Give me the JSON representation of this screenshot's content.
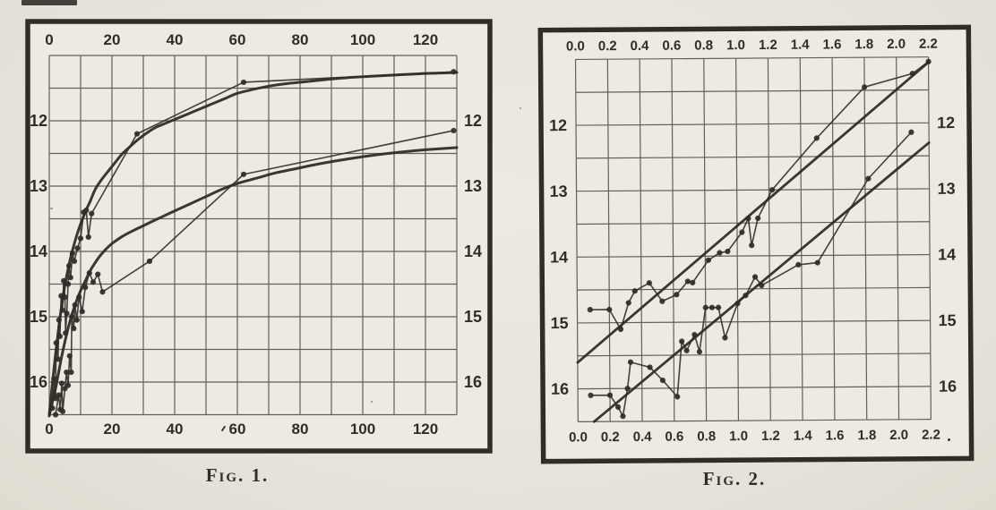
{
  "page": {
    "background": "#e7e4dc",
    "paper_fill": "#edeae3",
    "ink": "#2f2d28",
    "grid_color": "#4b4741"
  },
  "chart_data": [
    {
      "id": "fig1",
      "type": "line",
      "caption": "Fig. 1.",
      "x_axis": {
        "range": [
          0,
          130
        ],
        "grid_step": 10,
        "ticks": [
          0,
          20,
          40,
          60,
          80,
          100,
          120
        ],
        "tick_labels": [
          "0",
          "20",
          "40",
          "60",
          "80",
          "100",
          "120"
        ],
        "labels_top": true,
        "labels_bottom": true
      },
      "y_axis": {
        "range": [
          11,
          16.5
        ],
        "grid_step": 0.5,
        "ticks": [
          12,
          13,
          14,
          15,
          16
        ],
        "tick_labels": [
          "12",
          "13",
          "14",
          "15",
          "16"
        ],
        "inverted_magnitude_scale": true,
        "labels_left": true,
        "labels_right": true
      },
      "series": [
        {
          "name": "upper-smooth-curve",
          "style": "curve",
          "points": [
            [
              0,
              16.5
            ],
            [
              1,
              16.02
            ],
            [
              2,
              15.58
            ],
            [
              3,
              15.17
            ],
            [
              4,
              14.82
            ],
            [
              5,
              14.52
            ],
            [
              6,
              14.27
            ],
            [
              7,
              14.06
            ],
            [
              8,
              13.88
            ],
            [
              9,
              13.72
            ],
            [
              10,
              13.58
            ],
            [
              11,
              13.46
            ],
            [
              12,
              13.34
            ],
            [
              13,
              13.24
            ],
            [
              14,
              13.12
            ],
            [
              15,
              13.02
            ],
            [
              17,
              12.88
            ],
            [
              19,
              12.76
            ],
            [
              21,
              12.64
            ],
            [
              23,
              12.52
            ],
            [
              25,
              12.43
            ],
            [
              28,
              12.3
            ],
            [
              31,
              12.19
            ],
            [
              34,
              12.1
            ],
            [
              37,
              12.04
            ],
            [
              40,
              11.98
            ],
            [
              44,
              11.9
            ],
            [
              48,
              11.82
            ],
            [
              52,
              11.74
            ],
            [
              56,
              11.66
            ],
            [
              60,
              11.58
            ],
            [
              65,
              11.52
            ],
            [
              70,
              11.47
            ],
            [
              76,
              11.43
            ],
            [
              82,
              11.4
            ],
            [
              88,
              11.37
            ],
            [
              95,
              11.34
            ],
            [
              102,
              11.32
            ],
            [
              110,
              11.3
            ],
            [
              118,
              11.28
            ],
            [
              124,
              11.27
            ],
            [
              130,
              11.26
            ]
          ]
        },
        {
          "name": "lower-smooth-curve",
          "style": "curve",
          "points": [
            [
              0,
              16.52
            ],
            [
              1,
              16.3
            ],
            [
              2,
              16.1
            ],
            [
              3,
              15.85
            ],
            [
              4,
              15.6
            ],
            [
              5,
              15.38
            ],
            [
              6,
              15.18
            ],
            [
              7,
              15.0
            ],
            [
              8,
              14.85
            ],
            [
              9,
              14.72
            ],
            [
              10,
              14.6
            ],
            [
              11,
              14.5
            ],
            [
              12,
              14.4
            ],
            [
              13,
              14.3
            ],
            [
              14,
              14.22
            ],
            [
              16,
              14.08
            ],
            [
              18,
              13.97
            ],
            [
              20,
              13.88
            ],
            [
              23,
              13.78
            ],
            [
              26,
              13.7
            ],
            [
              29,
              13.63
            ],
            [
              32,
              13.56
            ],
            [
              36,
              13.47
            ],
            [
              40,
              13.38
            ],
            [
              45,
              13.27
            ],
            [
              50,
              13.16
            ],
            [
              55,
              13.05
            ],
            [
              60,
              12.96
            ],
            [
              66,
              12.88
            ],
            [
              72,
              12.8
            ],
            [
              78,
              12.74
            ],
            [
              85,
              12.67
            ],
            [
              92,
              12.61
            ],
            [
              100,
              12.55
            ],
            [
              108,
              12.5
            ],
            [
              116,
              12.46
            ],
            [
              124,
              12.43
            ],
            [
              130,
              12.41
            ]
          ]
        },
        {
          "name": "upper-observed-points",
          "style": "scatter-line",
          "points": [
            [
              1,
              16.4
            ],
            [
              1.5,
              15.95
            ],
            [
              2,
              16.25
            ],
            [
              2.2,
              15.4
            ],
            [
              2.8,
              15.65
            ],
            [
              3.1,
              15.05
            ],
            [
              3.4,
              15.3
            ],
            [
              3.8,
              14.68
            ],
            [
              4.2,
              14.9
            ],
            [
              4.6,
              14.45
            ],
            [
              5,
              14.7
            ],
            [
              5.2,
              15.25
            ],
            [
              5.6,
              14.95
            ],
            [
              6,
              14.5
            ],
            [
              6.3,
              14.22
            ],
            [
              6.8,
              14.4
            ],
            [
              7.4,
              14.03
            ],
            [
              8,
              14.15
            ],
            [
              9,
              13.95
            ],
            [
              10,
              13.8
            ],
            [
              11,
              13.4
            ],
            [
              11.8,
              13.37
            ],
            [
              12.5,
              13.78
            ],
            [
              13.5,
              13.42
            ],
            [
              28,
              12.2
            ],
            [
              62,
              11.41
            ],
            [
              129,
              11.25
            ]
          ]
        },
        {
          "name": "lower-observed-points",
          "style": "scatter-line",
          "points": [
            [
              2,
              16.5
            ],
            [
              3,
              16.2
            ],
            [
              3.5,
              16.42
            ],
            [
              4,
              16.02
            ],
            [
              4.3,
              16.45
            ],
            [
              5,
              16.1
            ],
            [
              5.5,
              15.85
            ],
            [
              6,
              16.05
            ],
            [
              6.5,
              15.6
            ],
            [
              7,
              15.85
            ],
            [
              7.2,
              15.0
            ],
            [
              7.8,
              15.18
            ],
            [
              8.2,
              14.82
            ],
            [
              8.8,
              15.05
            ],
            [
              9.5,
              14.7
            ],
            [
              10.5,
              14.92
            ],
            [
              11.5,
              14.55
            ],
            [
              12.8,
              14.33
            ],
            [
              14,
              14.47
            ],
            [
              15.5,
              14.35
            ],
            [
              17,
              14.62
            ],
            [
              32,
              14.15
            ],
            [
              62,
              12.82
            ],
            [
              129,
              12.15
            ]
          ]
        }
      ]
    },
    {
      "id": "fig2",
      "type": "line",
      "caption": "Fig. 2.",
      "x_axis": {
        "range": [
          0,
          2.2
        ],
        "grid_step": 0.2,
        "ticks": [
          0.0,
          0.2,
          0.4,
          0.6,
          0.8,
          1.0,
          1.2,
          1.4,
          1.6,
          1.8,
          2.0,
          2.2
        ],
        "tick_labels": [
          "0.0",
          "0.2",
          "0.4",
          "0.6",
          "0.8",
          "1.0",
          "1.2",
          "1.4",
          "1.6",
          "1.8",
          "2.0",
          "2.2"
        ],
        "labels_top": true,
        "labels_bottom": true
      },
      "y_axis": {
        "range": [
          11,
          16.5
        ],
        "grid_step": 0.5,
        "ticks": [
          12,
          13,
          14,
          15,
          16
        ],
        "tick_labels": [
          "12",
          "13",
          "14",
          "15",
          "16"
        ],
        "inverted_magnitude_scale": true,
        "labels_left": true,
        "labels_right": true
      },
      "series": [
        {
          "name": "upper-fit-line",
          "style": "straight",
          "points": [
            [
              0,
              15.6
            ],
            [
              2.2,
              11.08
            ]
          ]
        },
        {
          "name": "lower-fit-line",
          "style": "straight",
          "points": [
            [
              0.1,
              16.5
            ],
            [
              2.2,
              12.3
            ]
          ]
        },
        {
          "name": "upper-observed-points",
          "style": "scatter-line",
          "points": [
            [
              0.08,
              14.8
            ],
            [
              0.2,
              14.8
            ],
            [
              0.27,
              15.1
            ],
            [
              0.32,
              14.7
            ],
            [
              0.36,
              14.52
            ],
            [
              0.45,
              14.4
            ],
            [
              0.53,
              14.68
            ],
            [
              0.62,
              14.58
            ],
            [
              0.69,
              14.38
            ],
            [
              0.72,
              14.4
            ],
            [
              0.82,
              14.06
            ],
            [
              0.89,
              13.95
            ],
            [
              0.94,
              13.93
            ],
            [
              1.03,
              13.64
            ],
            [
              1.07,
              13.43
            ],
            [
              1.09,
              13.84
            ],
            [
              1.13,
              13.43
            ],
            [
              1.22,
              13.0
            ],
            [
              1.5,
              12.22
            ],
            [
              1.8,
              11.45
            ],
            [
              2.1,
              11.25
            ],
            [
              2.2,
              11.07
            ]
          ]
        },
        {
          "name": "lower-observed-points",
          "style": "scatter-line",
          "points": [
            [
              0.08,
              16.1
            ],
            [
              0.2,
              16.1
            ],
            [
              0.25,
              16.28
            ],
            [
              0.28,
              16.42
            ],
            [
              0.31,
              16.0
            ],
            [
              0.33,
              15.6
            ],
            [
              0.45,
              15.68
            ],
            [
              0.53,
              15.88
            ],
            [
              0.62,
              16.13
            ],
            [
              0.65,
              15.29
            ],
            [
              0.68,
              15.43
            ],
            [
              0.73,
              15.19
            ],
            [
              0.76,
              15.45
            ],
            [
              0.8,
              14.78
            ],
            [
              0.84,
              14.78
            ],
            [
              0.88,
              14.78
            ],
            [
              0.92,
              15.24
            ],
            [
              1.0,
              14.72
            ],
            [
              1.05,
              14.6
            ],
            [
              1.11,
              14.32
            ],
            [
              1.15,
              14.45
            ],
            [
              1.38,
              14.14
            ],
            [
              1.5,
              14.11
            ],
            [
              1.82,
              12.84
            ],
            [
              2.09,
              12.14
            ]
          ]
        }
      ]
    }
  ]
}
